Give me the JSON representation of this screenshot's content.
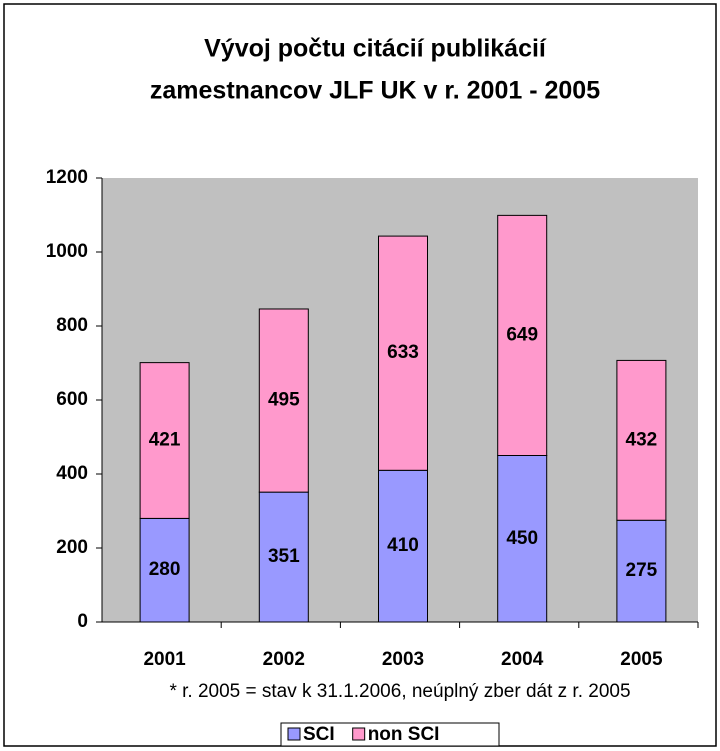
{
  "chart_data": {
    "type": "stacked_bar",
    "title": [
      "Vývoj počtu citácií publikácií",
      "zamestnancov JLF UK v r. 2001 - 2005"
    ],
    "annotation": "* r. 2005 = stav k 31.1.2006, neúplný zber dát z r. 2005",
    "categories": [
      "2001",
      "2002",
      "2003",
      "2004",
      "2005"
    ],
    "series": [
      {
        "name": "SCI",
        "color": "#9999ff",
        "values": [
          280,
          351,
          410,
          450,
          275
        ]
      },
      {
        "name": "non SCI",
        "color": "#ff99cc",
        "values": [
          421,
          495,
          633,
          649,
          432
        ]
      }
    ],
    "ylim": [
      0,
      1200
    ],
    "yticks": [
      0,
      200,
      400,
      600,
      800,
      1000,
      1200
    ],
    "grid": false,
    "legend": "bottom"
  }
}
